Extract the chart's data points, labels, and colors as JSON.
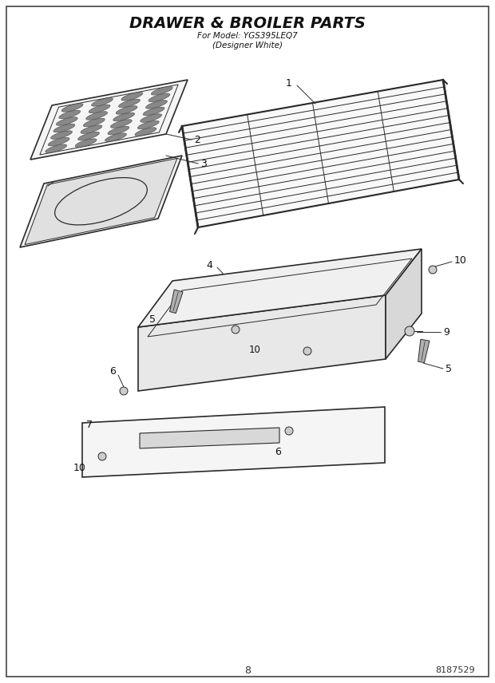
{
  "title_line1": "DRAWER & BROILER PARTS",
  "title_line2": "For Model: YGS395LEQ7",
  "title_line3": "(Designer White)",
  "page_number": "8",
  "part_number": "8187529",
  "background_color": "#ffffff",
  "line_color": "#2a2a2a",
  "label_color": "#111111"
}
